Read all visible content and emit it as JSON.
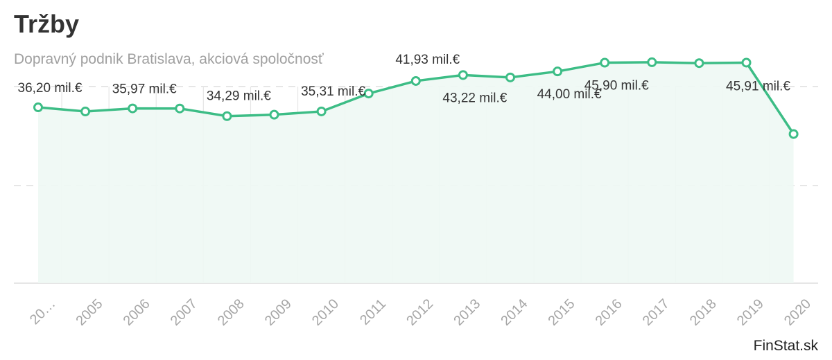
{
  "header": {
    "title": "Tržby",
    "subtitle": "Dopravný podnik Bratislava, akciová spoločnosť"
  },
  "credit": "FinStat.sk",
  "colors": {
    "line": "#3dbd86",
    "area": "#eef8f4",
    "grid_dashed": "#dddddd",
    "grid_vertical": "#e6e6e6"
  },
  "chart_data": {
    "type": "area",
    "title": "Tržby",
    "subtitle": "Dopravný podnik Bratislava, akciová spoločnosť",
    "categories": [
      "20…",
      "2005",
      "2006",
      "2007",
      "2008",
      "2009",
      "2010",
      "2011",
      "2012",
      "2013",
      "2014",
      "2015",
      "2016",
      "2017",
      "2018",
      "2019",
      "2020"
    ],
    "values": [
      36.2,
      35.3,
      35.97,
      35.95,
      34.29,
      34.6,
      35.31,
      39.2,
      41.93,
      43.22,
      42.7,
      44.0,
      45.9,
      46.0,
      45.8,
      45.91,
      30.4
    ],
    "data_labels": [
      {
        "index": 0,
        "text": "36,20 mil.€"
      },
      {
        "index": 2,
        "text": "35,97 mil.€"
      },
      {
        "index": 4,
        "text": "34,29 mil.€"
      },
      {
        "index": 6,
        "text": "35,31 mil.€"
      },
      {
        "index": 8,
        "text": "41,93 mil.€"
      },
      {
        "index": 9,
        "text": "43,22 mil.€"
      },
      {
        "index": 11,
        "text": "44,00 mil.€"
      },
      {
        "index": 12,
        "text": "45,90 mil.€"
      },
      {
        "index": 15,
        "text": "45,91 mil.€"
      }
    ],
    "ylim": [
      -2,
      52
    ],
    "grid": true,
    "unit": "mil.€"
  }
}
